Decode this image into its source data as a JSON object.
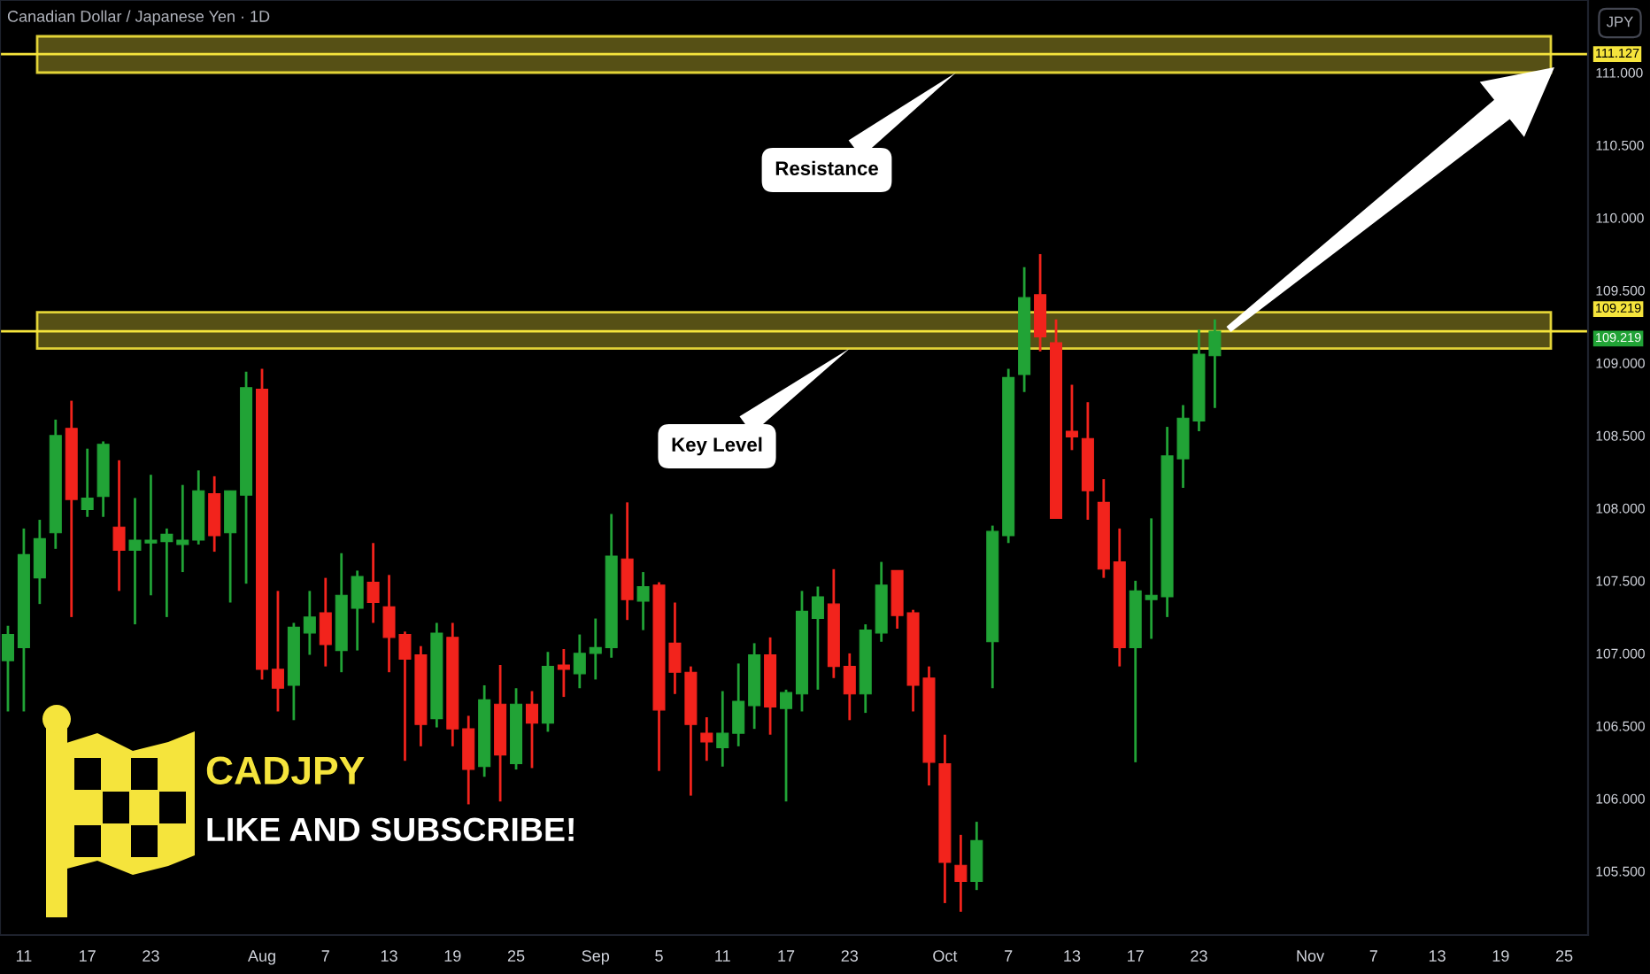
{
  "chart_data": {
    "type": "candlestick",
    "title": "Canadian Dollar / Japanese Yen · 1D",
    "ylabel": "JPY",
    "categories": [
      null,
      "11",
      null,
      null,
      null,
      "17",
      null,
      null,
      null,
      "23",
      null,
      null,
      null,
      null,
      null,
      null,
      "Aug",
      null,
      null,
      null,
      "7",
      null,
      null,
      null,
      "13",
      null,
      null,
      null,
      "19",
      null,
      null,
      null,
      "25",
      null,
      null,
      null,
      null,
      "Sep",
      null,
      null,
      null,
      "5",
      null,
      null,
      null,
      "11",
      null,
      null,
      null,
      "17",
      null,
      null,
      null,
      "23",
      null,
      null,
      null,
      null,
      null,
      "Oct",
      null,
      null,
      null,
      "7",
      null,
      null,
      null,
      "13",
      null,
      null,
      null,
      "17",
      null,
      null,
      null,
      "23",
      null,
      null,
      null,
      null,
      null,
      null,
      "Nov",
      null,
      null,
      null,
      "7",
      null,
      null,
      null,
      "13",
      null,
      null,
      null,
      "19",
      null,
      null,
      null,
      "25",
      null
    ],
    "ohlc": [
      [
        106.95,
        107.19,
        106.6,
        107.13
      ],
      [
        107.04,
        107.86,
        106.6,
        107.68
      ],
      [
        107.52,
        107.92,
        107.34,
        107.79
      ],
      [
        107.83,
        108.61,
        107.72,
        108.5
      ],
      [
        108.55,
        108.74,
        107.25,
        108.06
      ],
      [
        107.99,
        108.41,
        107.94,
        108.07
      ],
      [
        108.08,
        108.46,
        107.94,
        108.44
      ],
      [
        107.87,
        108.33,
        107.43,
        107.71
      ],
      [
        107.71,
        108.07,
        107.2,
        107.78
      ],
      [
        107.76,
        108.23,
        107.4,
        107.78
      ],
      [
        107.77,
        107.86,
        107.25,
        107.82
      ],
      [
        107.75,
        108.16,
        107.56,
        107.78
      ],
      [
        107.78,
        108.26,
        107.75,
        108.12
      ],
      [
        108.1,
        108.22,
        107.7,
        107.81
      ],
      [
        107.83,
        108.12,
        107.35,
        108.12
      ],
      [
        108.09,
        108.94,
        107.48,
        108.83
      ],
      [
        108.82,
        108.96,
        106.82,
        106.89
      ],
      [
        106.89,
        107.43,
        106.6,
        106.76
      ],
      [
        106.78,
        107.21,
        106.54,
        107.18
      ],
      [
        107.14,
        107.43,
        106.99,
        107.25
      ],
      [
        107.28,
        107.52,
        106.91,
        107.06
      ],
      [
        107.02,
        107.69,
        106.87,
        107.4
      ],
      [
        107.31,
        107.57,
        107.02,
        107.53
      ],
      [
        107.49,
        107.76,
        107.21,
        107.35
      ],
      [
        107.32,
        107.54,
        106.87,
        107.11
      ],
      [
        107.13,
        107.15,
        106.26,
        106.96
      ],
      [
        106.99,
        107.05,
        106.36,
        106.51
      ],
      [
        106.55,
        107.21,
        106.49,
        107.14
      ],
      [
        107.11,
        107.21,
        106.36,
        106.48
      ],
      [
        106.48,
        106.57,
        105.96,
        106.2
      ],
      [
        106.22,
        106.78,
        106.15,
        106.68
      ],
      [
        106.65,
        106.92,
        105.98,
        106.3
      ],
      [
        106.24,
        106.76,
        106.2,
        106.65
      ],
      [
        106.65,
        106.74,
        106.21,
        106.52
      ],
      [
        106.52,
        107.01,
        106.46,
        106.91
      ],
      [
        106.92,
        107.03,
        106.7,
        106.89
      ],
      [
        106.86,
        107.13,
        106.76,
        107.0
      ],
      [
        107.0,
        107.24,
        106.82,
        107.04
      ],
      [
        107.04,
        107.96,
        106.97,
        107.67
      ],
      [
        107.65,
        108.04,
        107.23,
        107.37
      ],
      [
        107.36,
        107.56,
        107.16,
        107.46
      ],
      [
        107.47,
        107.49,
        106.19,
        106.61
      ],
      [
        107.07,
        107.35,
        106.72,
        106.87
      ],
      [
        106.87,
        106.91,
        106.02,
        106.51
      ],
      [
        106.45,
        106.56,
        106.26,
        106.39
      ],
      [
        106.35,
        106.74,
        106.22,
        106.45
      ],
      [
        106.45,
        106.93,
        106.36,
        106.67
      ],
      [
        106.64,
        107.07,
        106.48,
        106.99
      ],
      [
        106.99,
        107.11,
        106.44,
        106.63
      ],
      [
        106.62,
        106.75,
        105.98,
        106.73
      ],
      [
        106.72,
        107.43,
        106.6,
        107.29
      ],
      [
        107.24,
        107.46,
        106.75,
        107.39
      ],
      [
        107.34,
        107.58,
        106.83,
        106.91
      ],
      [
        106.91,
        107.0,
        106.54,
        106.72
      ],
      [
        106.72,
        107.2,
        106.59,
        107.16
      ],
      [
        107.14,
        107.63,
        107.08,
        107.47
      ],
      [
        107.57,
        107.57,
        107.17,
        107.26
      ],
      [
        107.28,
        107.3,
        106.6,
        106.78
      ],
      [
        106.83,
        106.91,
        106.09,
        106.25
      ],
      [
        106.24,
        106.44,
        105.28,
        105.56
      ],
      [
        105.54,
        105.75,
        105.22,
        105.43
      ],
      [
        105.43,
        105.84,
        105.37,
        105.71
      ],
      [
        107.08,
        107.88,
        106.76,
        107.84
      ],
      [
        107.81,
        108.96,
        107.76,
        108.9
      ],
      [
        108.92,
        109.66,
        108.8,
        109.45
      ],
      [
        109.47,
        109.75,
        109.08,
        109.18
      ],
      [
        109.14,
        109.3,
        107.93,
        107.93
      ],
      [
        108.53,
        108.85,
        108.4,
        108.49
      ],
      [
        108.48,
        108.73,
        107.92,
        108.12
      ],
      [
        108.04,
        108.2,
        107.52,
        107.58
      ],
      [
        107.63,
        107.86,
        106.91,
        107.04
      ],
      [
        107.04,
        107.5,
        106.25,
        107.43
      ],
      [
        107.37,
        107.93,
        107.1,
        107.4
      ],
      [
        107.39,
        108.56,
        107.25,
        108.36
      ],
      [
        108.34,
        108.71,
        108.14,
        108.62
      ],
      [
        108.6,
        109.23,
        108.53,
        109.06
      ],
      [
        109.05,
        109.3,
        108.69,
        109.219
      ],
      null,
      null,
      null,
      null,
      null,
      null,
      null,
      null,
      null,
      null,
      null,
      null,
      null,
      null,
      null,
      null,
      null,
      null,
      null,
      null,
      null,
      null,
      null
    ],
    "colors": [
      "#21a336",
      "#21a336",
      "#21a336",
      "#21a336",
      "#f2231c",
      "#21a336",
      "#21a336",
      "#f2231c",
      "#21a336",
      "#21a336",
      "#21a336",
      "#21a336",
      "#21a336",
      "#f2231c",
      "#21a336",
      "#21a336",
      "#f2231c",
      "#f2231c",
      "#21a336",
      "#21a336",
      "#f2231c",
      "#21a336",
      "#21a336",
      "#f2231c",
      "#f2231c",
      "#f2231c",
      "#f2231c",
      "#21a336",
      "#f2231c",
      "#f2231c",
      "#21a336",
      "#f2231c",
      "#21a336",
      "#f2231c",
      "#21a336",
      "#f2231c",
      "#21a336",
      "#21a336",
      "#21a336",
      "#f2231c",
      "#21a336",
      "#f2231c",
      "#f2231c",
      "#f2231c",
      "#f2231c",
      "#21a336",
      "#21a336",
      "#21a336",
      "#f2231c",
      "#21a336",
      "#21a336",
      "#21a336",
      "#f2231c",
      "#f2231c",
      "#21a336",
      "#21a336",
      "#f2231c",
      "#f2231c",
      "#f2231c",
      "#f2231c",
      "#f2231c",
      "#21a336",
      "#21a336",
      "#21a336",
      "#21a336",
      "#f2231c",
      "#f2231c",
      "#f2231c",
      "#f2231c",
      "#f2231c",
      "#f2231c",
      "#21a336",
      "#21a336",
      "#21a336",
      "#21a336",
      "#21a336",
      "#21a336",
      null,
      null,
      null,
      null,
      null,
      null,
      null,
      null,
      null,
      null,
      null,
      null,
      null,
      null,
      null,
      null,
      null,
      null,
      null,
      null,
      null,
      null,
      null
    ],
    "ylim": [
      105.06,
      111.5
    ],
    "yticks": [
      {
        "value": 105.5,
        "label": "105.500"
      },
      {
        "value": 106,
        "label": "106.000"
      },
      {
        "value": 106.5,
        "label": "106.500"
      },
      {
        "value": 107,
        "label": "107.000"
      },
      {
        "value": 107.5,
        "label": "107.500"
      },
      {
        "value": 108,
        "label": "108.000"
      },
      {
        "value": 108.5,
        "label": "108.500"
      },
      {
        "value": 109,
        "label": "109.000"
      },
      {
        "value": 109.5,
        "label": "109.500"
      },
      {
        "value": 110,
        "label": "110.000"
      },
      {
        "value": 110.5,
        "label": "110.500"
      },
      {
        "value": 111,
        "label": "111.000"
      }
    ],
    "ref_lines": [
      {
        "axis": "y",
        "value": 111.127,
        "label": "111.127",
        "color": "#f5e43c"
      },
      {
        "axis": "y",
        "value": 109.219,
        "label": "109.219",
        "color": "#f5e43c"
      }
    ],
    "bands": [
      {
        "axis": "y",
        "from": 111.0,
        "to": 111.25,
        "color": "#f5e43c"
      },
      {
        "axis": "y",
        "from": 109.1,
        "to": 109.35,
        "color": "#f5e43c"
      }
    ],
    "annotations": [
      "Resistance",
      "Key Level",
      "109.219",
      "CADJPY",
      "LIKE AND SUBSCRIBE!"
    ]
  }
}
